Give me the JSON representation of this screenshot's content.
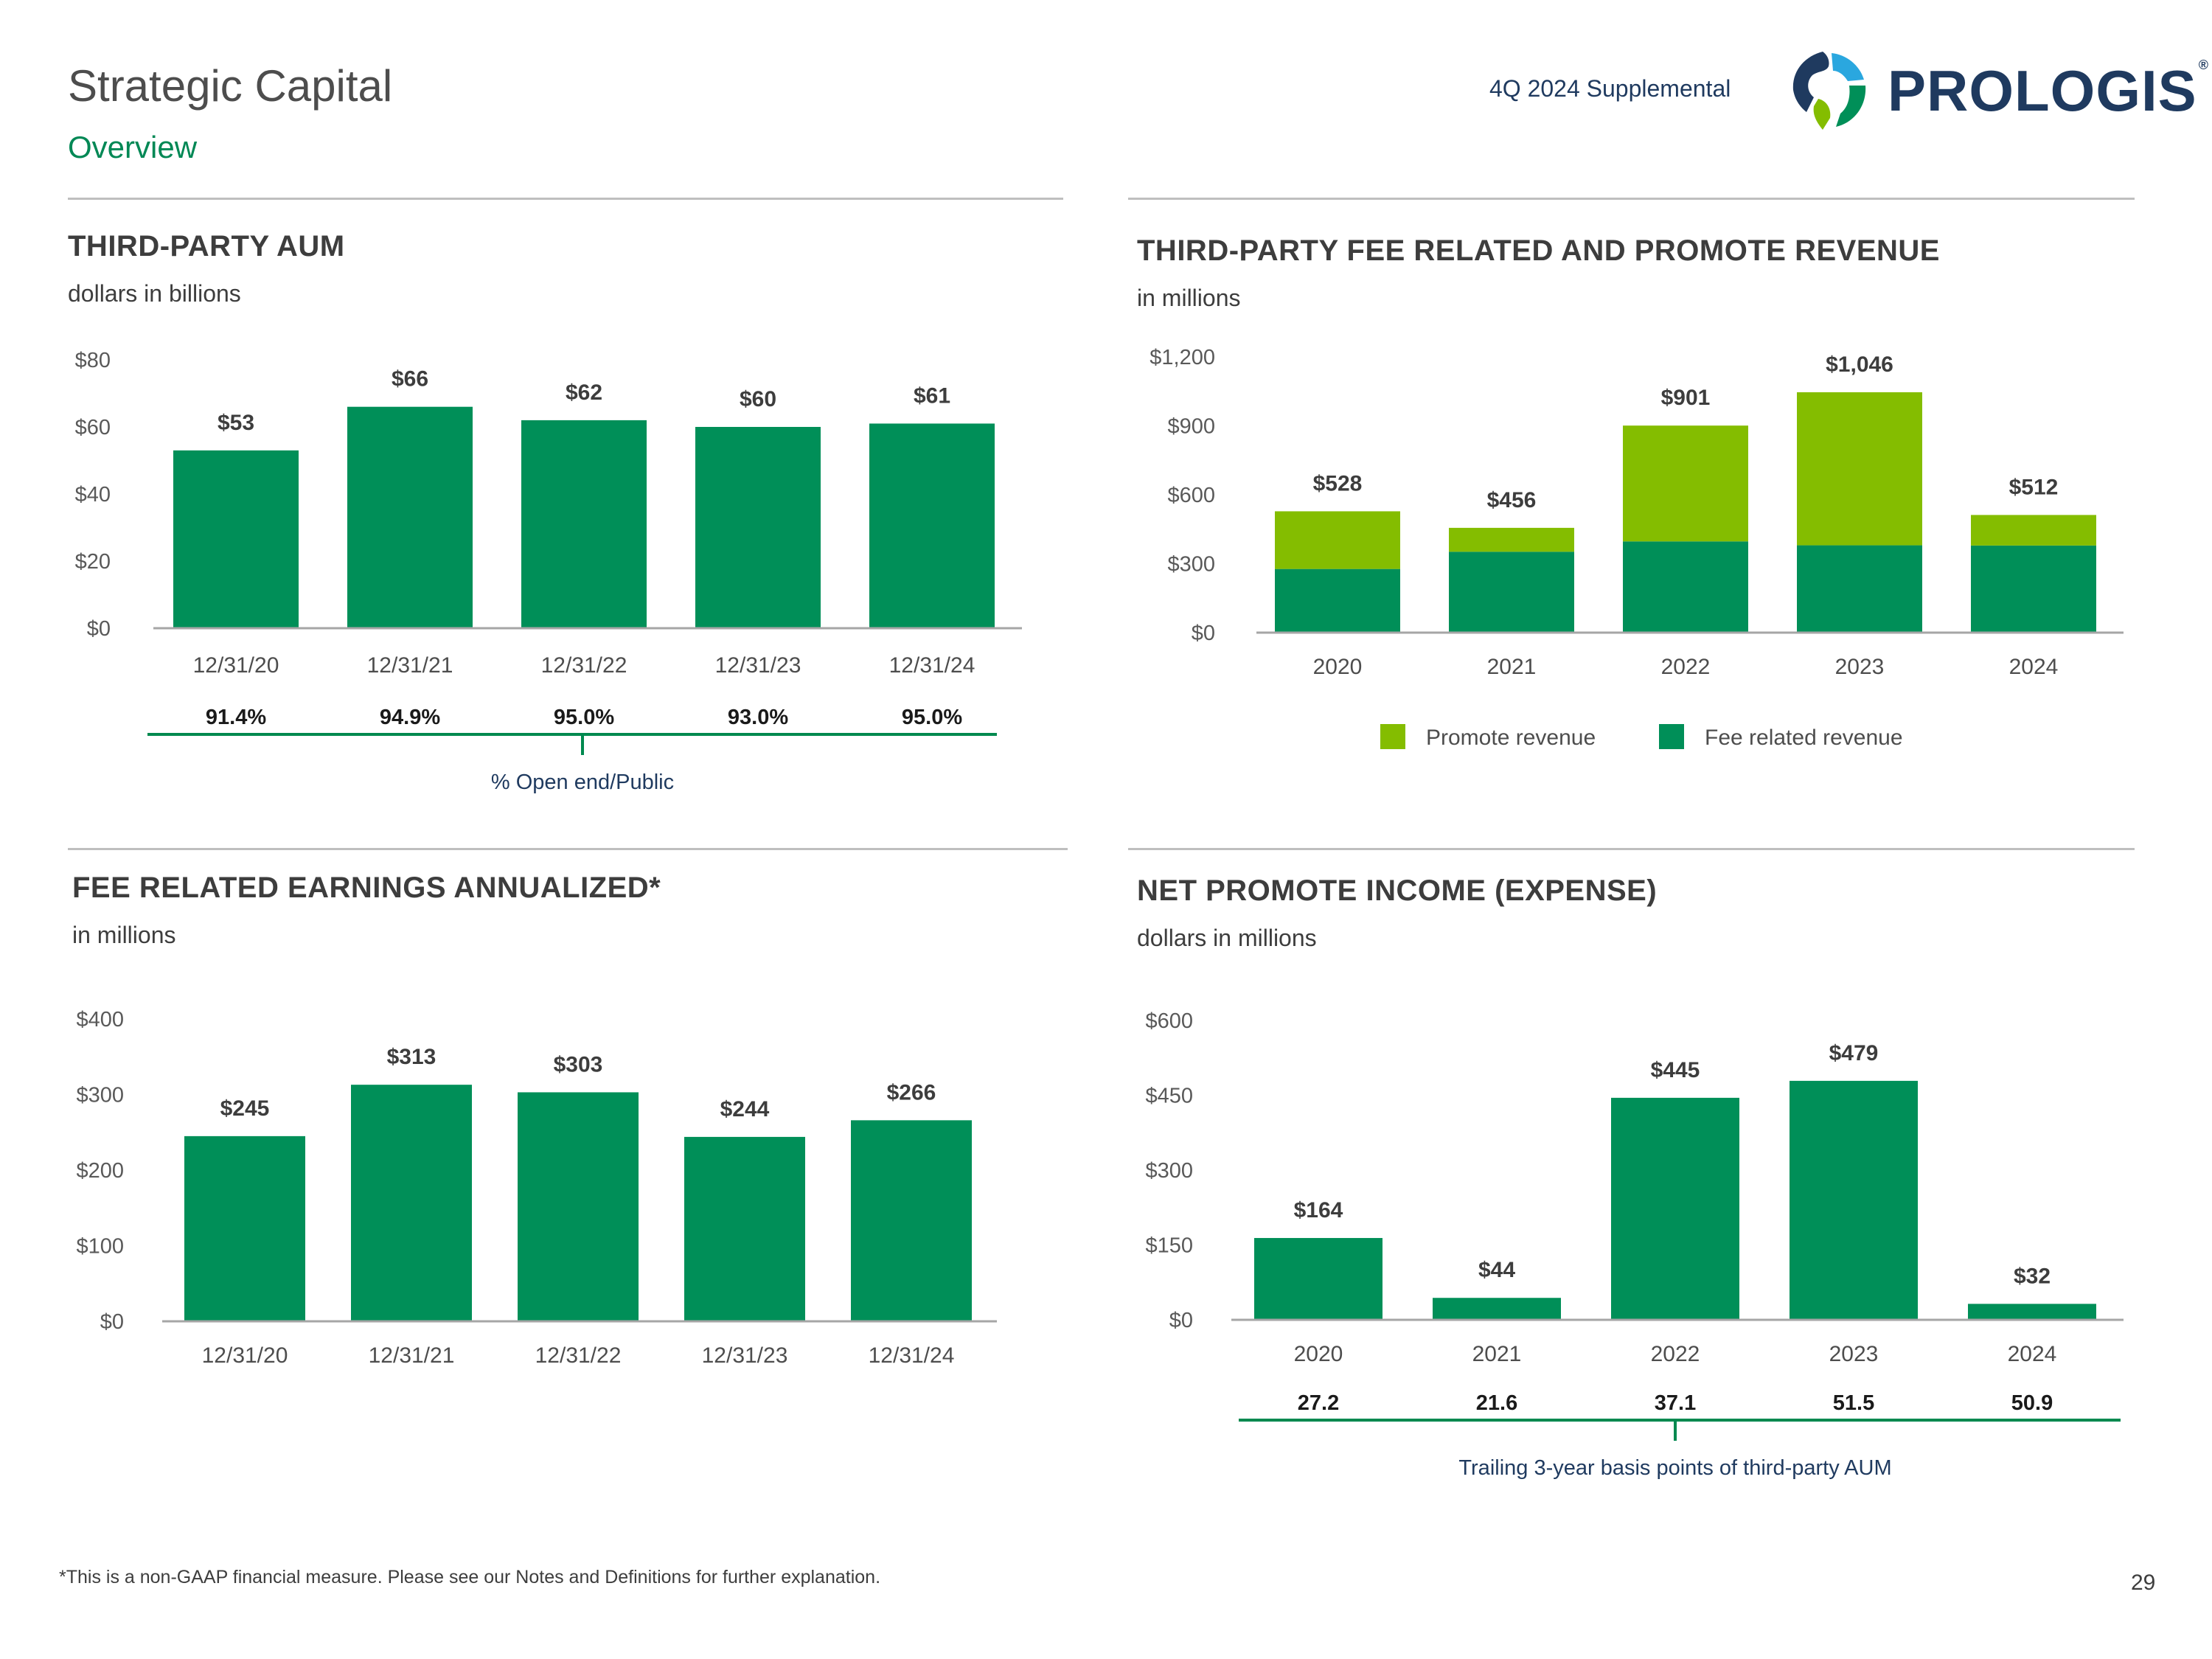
{
  "header": {
    "title": "Strategic Capital",
    "subtitle": "Overview",
    "doc_label": "4Q 2024 Supplemental",
    "logo_text": "PROLOGIS",
    "logo_mark": "®"
  },
  "colors": {
    "fee_green": "#008F58",
    "promote_green": "#84BD00",
    "axis_gray": "#a6a6a6",
    "bracket_green": "#00894f"
  },
  "sections": {
    "aum": {
      "title": "THIRD-PARTY AUM",
      "subtitle": "dollars in billions"
    },
    "revenue": {
      "title": "THIRD-PARTY FEE RELATED AND PROMOTE REVENUE",
      "subtitle": "in millions"
    },
    "fre": {
      "title": "FEE RELATED EARNINGS ANNUALIZED*",
      "subtitle": "in millions"
    },
    "promote": {
      "title": "NET PROMOTE INCOME (EXPENSE)",
      "subtitle": "dollars in millions"
    }
  },
  "chart_data": [
    {
      "id": "aum",
      "type": "bar",
      "categories": [
        "12/31/20",
        "12/31/21",
        "12/31/22",
        "12/31/23",
        "12/31/24"
      ],
      "values": [
        53,
        66,
        62,
        60,
        61
      ],
      "data_labels": [
        "$53",
        "$66",
        "$62",
        "$60",
        "$61"
      ],
      "y_ticks": [
        "$0",
        "$20",
        "$40",
        "$60",
        "$80"
      ],
      "y_tick_values": [
        0,
        20,
        40,
        60,
        80
      ],
      "ylim": [
        0,
        80
      ],
      "sub_row_values": [
        "91.4%",
        "94.9%",
        "95.0%",
        "93.0%",
        "95.0%"
      ],
      "sub_row_label": "% Open end/Public",
      "grid": false
    },
    {
      "id": "revenue",
      "type": "bar",
      "stacked": true,
      "categories": [
        "2020",
        "2021",
        "2022",
        "2023",
        "2024"
      ],
      "series": [
        {
          "name": "Fee related revenue",
          "values": [
            277,
            352,
            397,
            380,
            379
          ]
        },
        {
          "name": "Promote revenue",
          "values": [
            251,
            104,
            504,
            666,
            133
          ]
        }
      ],
      "totals": [
        528,
        456,
        901,
        1046,
        512
      ],
      "data_labels": [
        "$528",
        "$456",
        "$901",
        "$1,046",
        "$512"
      ],
      "y_ticks": [
        "$0",
        "$300",
        "$600",
        "$900",
        "$1,200"
      ],
      "y_tick_values": [
        0,
        300,
        600,
        900,
        1200
      ],
      "ylim": [
        0,
        1200
      ],
      "legend": [
        "Promote revenue",
        "Fee related revenue"
      ],
      "legend_position": "bottom",
      "grid": false
    },
    {
      "id": "fre",
      "type": "bar",
      "categories": [
        "12/31/20",
        "12/31/21",
        "12/31/22",
        "12/31/23",
        "12/31/24"
      ],
      "values": [
        245,
        313,
        303,
        244,
        266
      ],
      "data_labels": [
        "$245",
        "$313",
        "$303",
        "$244",
        "$266"
      ],
      "y_ticks": [
        "$0",
        "$100",
        "$200",
        "$300",
        "$400"
      ],
      "y_tick_values": [
        0,
        100,
        200,
        300,
        400
      ],
      "ylim": [
        0,
        400
      ],
      "grid": false
    },
    {
      "id": "promote",
      "type": "bar",
      "categories": [
        "2020",
        "2021",
        "2022",
        "2023",
        "2024"
      ],
      "values": [
        164,
        44,
        445,
        479,
        32
      ],
      "data_labels": [
        "$164",
        "$44",
        "$445",
        "$479",
        "$32"
      ],
      "y_ticks": [
        "$0",
        "$150",
        "$300",
        "$450",
        "$600"
      ],
      "y_tick_values": [
        0,
        150,
        300,
        450,
        600
      ],
      "ylim": [
        0,
        600
      ],
      "sub_row_values": [
        "27.2",
        "21.6",
        "37.1",
        "51.5",
        "50.9"
      ],
      "sub_row_label": "Trailing 3-year basis points of third-party AUM",
      "grid": false
    }
  ],
  "footer": {
    "footnote": "*This is a non-GAAP financial measure. Please see our Notes and Definitions for further explanation.",
    "page_number": "29"
  }
}
